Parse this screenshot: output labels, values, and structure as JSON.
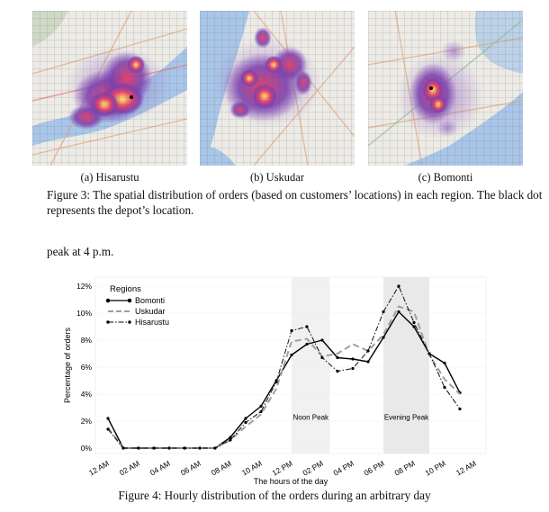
{
  "figure3": {
    "subcaptions": [
      "(a) Hisarustu",
      "(b) Uskudar",
      "(c) Bomonti"
    ],
    "caption": "Figure 3: The spatial distribution of orders (based on customers’ locations) in each region. The black dot represents the depot’s location."
  },
  "body_text": "peak at 4 p.m.",
  "figure4": {
    "caption": "Figure 4: Hourly distribution of the orders during an arbitrary day"
  },
  "colors": {
    "water": "#a9c6e8",
    "land": "#ecebe6",
    "heat_low": "#7b3fb0",
    "heat_mid": "#e8436a",
    "heat_high": "#f7f06d",
    "peak_band": "#eeeeee"
  },
  "chart_data": {
    "type": "line",
    "xlabel": "The hours of the day",
    "ylabel": "Percentage of orders",
    "x_tick_labels": [
      "12 AM",
      "02 AM",
      "04 AM",
      "06 AM",
      "08 AM",
      "10 AM",
      "12 PM",
      "02 PM",
      "04 PM",
      "06 PM",
      "08 PM",
      "10 PM",
      "12 AM"
    ],
    "y_tick_labels": [
      "0%",
      "2%",
      "4%",
      "6%",
      "8%",
      "10%",
      "12%"
    ],
    "xlim": [
      0,
      24
    ],
    "ylim": [
      0,
      12
    ],
    "legend_title": "Regions",
    "legend_position": "top-left",
    "bands": [
      {
        "label": "Noon Peak",
        "from": 12,
        "to": 14.5
      },
      {
        "label": "Evening Peak",
        "from": 18,
        "to": 21
      }
    ],
    "series": [
      {
        "name": "Bomonti",
        "style": "solid",
        "x": [
          0,
          1,
          2,
          3,
          4,
          5,
          6,
          7,
          8,
          9,
          10,
          11,
          12,
          13,
          14,
          15,
          16,
          17,
          18,
          19,
          20,
          21,
          22,
          23
        ],
        "values": [
          2.2,
          0,
          0,
          0,
          0,
          0,
          0,
          0,
          0.8,
          2.2,
          3.1,
          5.0,
          6.9,
          7.7,
          8.0,
          6.7,
          6.6,
          6.4,
          8.2,
          10.1,
          9.0,
          7.0,
          6.3,
          4.1
        ]
      },
      {
        "name": "Uskudar",
        "style": "dashed",
        "x": [
          0,
          1,
          2,
          3,
          4,
          5,
          6,
          7,
          8,
          9,
          10,
          11,
          12,
          13,
          14,
          15,
          16,
          17,
          18,
          19,
          20,
          21,
          22,
          23
        ],
        "values": [
          1.5,
          0,
          0,
          0,
          0,
          0,
          0,
          0,
          0.6,
          1.6,
          2.5,
          4.4,
          7.9,
          8.1,
          6.8,
          7.0,
          7.7,
          7.2,
          8.4,
          10.5,
          10.1,
          6.9,
          5.1,
          4.0
        ]
      },
      {
        "name": "Hisarustu",
        "style": "dashdot",
        "x": [
          0,
          1,
          2,
          3,
          4,
          5,
          6,
          7,
          8,
          9,
          10,
          11,
          12,
          13,
          14,
          15,
          16,
          17,
          18,
          19,
          20,
          21,
          22,
          23
        ],
        "values": [
          1.4,
          0,
          0,
          0,
          0,
          0,
          0,
          0,
          0.6,
          1.9,
          2.7,
          4.9,
          8.7,
          9.0,
          6.7,
          5.7,
          5.9,
          7.2,
          10.1,
          12.0,
          9.3,
          7.0,
          4.5,
          2.9
        ]
      }
    ]
  }
}
